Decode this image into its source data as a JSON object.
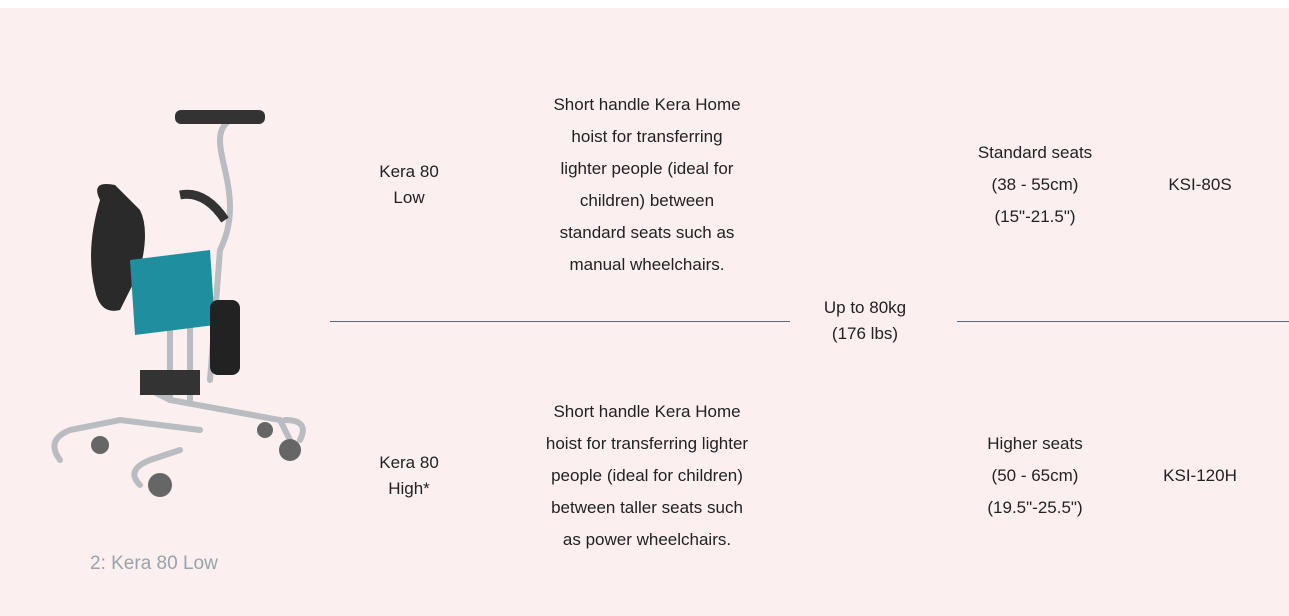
{
  "caption": "2: Kera 80 Low",
  "table": {
    "rows": [
      {
        "model": [
          "Kera 80",
          "Low"
        ],
        "description": [
          "Short handle Kera Home",
          "hoist for transferring",
          "lighter people (ideal for",
          "children) between",
          "standard seats such as",
          "manual wheelchairs."
        ],
        "seats": [
          "Standard seats",
          "(38 - 55cm)",
          "(15\"-21.5\")"
        ],
        "code": "KSI-80S"
      },
      {
        "model": [
          "Kera 80",
          "High*"
        ],
        "description": [
          "Short handle Kera Home",
          "hoist for transferring lighter",
          "people (ideal for children)",
          "between taller seats such",
          "as power wheelchairs."
        ],
        "seats": [
          "Higher seats",
          "(50 - 65cm)",
          "(19.5\"-25.5\")"
        ],
        "code": "KSI-120H"
      }
    ],
    "capacity": [
      "Up to 80kg",
      "(176 lbs)"
    ]
  }
}
